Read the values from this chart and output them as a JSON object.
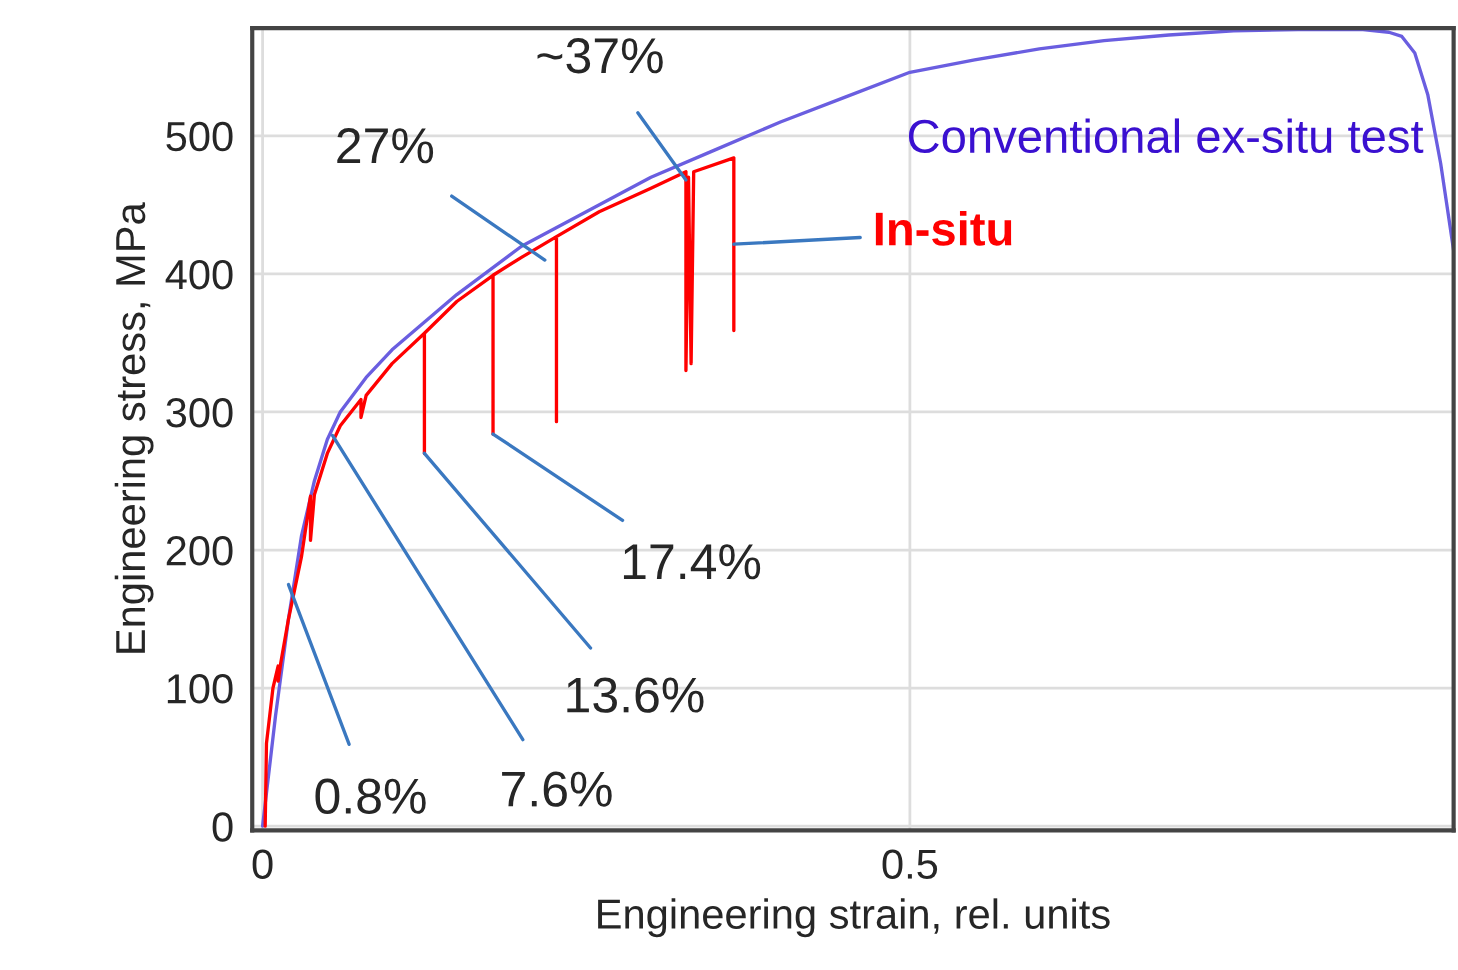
{
  "chart_data": {
    "type": "line",
    "xlabel": "Engineering strain, rel. units",
    "ylabel": "Engineering stress, MPa",
    "xlim": [
      -0.008,
      0.92
    ],
    "ylim": [
      -3,
      578
    ],
    "xticks": [
      0,
      0.5
    ],
    "yticks": [
      0,
      100,
      200,
      300,
      400,
      500
    ],
    "grid": true,
    "legend": false,
    "series": [
      {
        "name": "Conventional ex-situ test",
        "color": "#6a5ee0",
        "x": [
          0,
          0.01,
          0.02,
          0.03,
          0.04,
          0.05,
          0.06,
          0.08,
          0.1,
          0.15,
          0.2,
          0.25,
          0.3,
          0.35,
          0.4,
          0.45,
          0.5,
          0.55,
          0.6,
          0.65,
          0.7,
          0.75,
          0.8,
          0.85,
          0.87,
          0.88,
          0.89,
          0.9,
          0.91,
          0.92
        ],
        "values": [
          0,
          80,
          150,
          210,
          250,
          280,
          300,
          325,
          345,
          385,
          420,
          445,
          470,
          490,
          510,
          528,
          546,
          555,
          563,
          569,
          573,
          576,
          577,
          577,
          575,
          572,
          560,
          530,
          480,
          417
        ]
      },
      {
        "name": "In-situ",
        "color": "#ff0000",
        "x": [
          0.002,
          0.003,
          0.008,
          0.012,
          0.012,
          0.014,
          0.02,
          0.03,
          0.037,
          0.037,
          0.04,
          0.05,
          0.06,
          0.076,
          0.076,
          0.08,
          0.1,
          0.125,
          0.125,
          0.125,
          0.15,
          0.178,
          0.178,
          0.178,
          0.2,
          0.227,
          0.227,
          0.227,
          0.26,
          0.3,
          0.327,
          0.327,
          0.329,
          0.331,
          0.333,
          0.364,
          0.364
        ],
        "values": [
          0,
          60,
          100,
          116,
          105,
          118,
          150,
          195,
          239,
          207,
          240,
          270,
          290,
          309,
          296,
          312,
          335,
          357,
          270,
          357,
          380,
          399,
          284,
          399,
          412,
          427,
          293,
          427,
          445,
          462,
          474,
          330,
          470,
          335,
          474,
          484,
          359
        ]
      }
    ],
    "annotations": [
      {
        "text": "~37%",
        "x": 0.327,
        "y": 468
      },
      {
        "text": "27%",
        "x": 0.218,
        "y": 410
      },
      {
        "text": "17.4%",
        "x": 0.178,
        "y": 284
      },
      {
        "text": "13.6%",
        "x": 0.125,
        "y": 270
      },
      {
        "text": "7.6%",
        "x": 0.054,
        "y": 283
      },
      {
        "text": "0.8%",
        "x": 0.02,
        "y": 175
      }
    ]
  }
}
